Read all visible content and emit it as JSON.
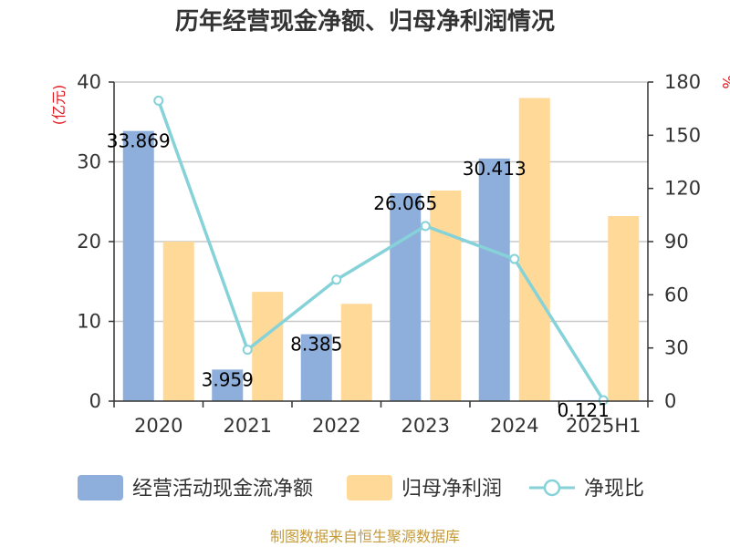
{
  "title": "历年经营现金净额、归母净利润情况",
  "source": "制图数据来自恒生聚源数据库",
  "chart_data": {
    "type": "bar",
    "categories": [
      "2020",
      "2021",
      "2022",
      "2023",
      "2024",
      "2025H1"
    ],
    "left_axis": {
      "unit": "(亿元)",
      "ylim": [
        0,
        40
      ],
      "ticks": [
        0,
        10,
        20,
        30,
        40
      ]
    },
    "right_axis": {
      "unit": "%",
      "ylim": [
        0,
        180
      ],
      "ticks": [
        0,
        30,
        60,
        90,
        120,
        150,
        180
      ]
    },
    "series": [
      {
        "name": "经营活动现金流净额",
        "kind": "bar",
        "axis": "left",
        "color": "#8eaedb",
        "values": [
          33.869,
          3.959,
          8.385,
          26.065,
          30.413,
          0.121
        ],
        "labels": [
          "33.869",
          "3.959",
          "8.385",
          "26.065",
          "30.413",
          "0.121"
        ]
      },
      {
        "name": "归母净利润",
        "kind": "bar",
        "axis": "left",
        "color": "#fed998",
        "values": [
          20.0,
          13.7,
          12.2,
          26.4,
          38.0,
          23.2
        ]
      },
      {
        "name": "净现比",
        "kind": "line",
        "axis": "right",
        "color": "#86d2d9",
        "values": [
          169.5,
          29.0,
          68.5,
          98.8,
          80.2,
          0.5
        ]
      }
    ],
    "grid": true,
    "legend": "bottom"
  }
}
